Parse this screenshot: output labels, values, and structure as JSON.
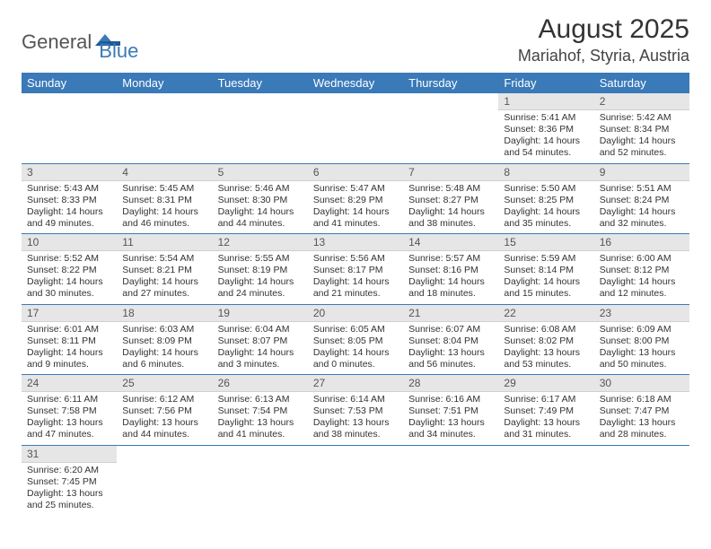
{
  "brand": {
    "general": "General",
    "blue": "Blue"
  },
  "title": "August 2025",
  "location": "Mariahof, Styria, Austria",
  "colors": {
    "header_bg": "#3a7ab8",
    "header_text": "#ffffff",
    "daynum_bg": "#e6e6e6",
    "rule": "#3a7ab8"
  },
  "weekdays": [
    "Sunday",
    "Monday",
    "Tuesday",
    "Wednesday",
    "Thursday",
    "Friday",
    "Saturday"
  ],
  "grid": [
    [
      null,
      null,
      null,
      null,
      null,
      {
        "n": "1",
        "sr": "5:41 AM",
        "ss": "8:36 PM",
        "dl": "14 hours and 54 minutes."
      },
      {
        "n": "2",
        "sr": "5:42 AM",
        "ss": "8:34 PM",
        "dl": "14 hours and 52 minutes."
      }
    ],
    [
      {
        "n": "3",
        "sr": "5:43 AM",
        "ss": "8:33 PM",
        "dl": "14 hours and 49 minutes."
      },
      {
        "n": "4",
        "sr": "5:45 AM",
        "ss": "8:31 PM",
        "dl": "14 hours and 46 minutes."
      },
      {
        "n": "5",
        "sr": "5:46 AM",
        "ss": "8:30 PM",
        "dl": "14 hours and 44 minutes."
      },
      {
        "n": "6",
        "sr": "5:47 AM",
        "ss": "8:29 PM",
        "dl": "14 hours and 41 minutes."
      },
      {
        "n": "7",
        "sr": "5:48 AM",
        "ss": "8:27 PM",
        "dl": "14 hours and 38 minutes."
      },
      {
        "n": "8",
        "sr": "5:50 AM",
        "ss": "8:25 PM",
        "dl": "14 hours and 35 minutes."
      },
      {
        "n": "9",
        "sr": "5:51 AM",
        "ss": "8:24 PM",
        "dl": "14 hours and 32 minutes."
      }
    ],
    [
      {
        "n": "10",
        "sr": "5:52 AM",
        "ss": "8:22 PM",
        "dl": "14 hours and 30 minutes."
      },
      {
        "n": "11",
        "sr": "5:54 AM",
        "ss": "8:21 PM",
        "dl": "14 hours and 27 minutes."
      },
      {
        "n": "12",
        "sr": "5:55 AM",
        "ss": "8:19 PM",
        "dl": "14 hours and 24 minutes."
      },
      {
        "n": "13",
        "sr": "5:56 AM",
        "ss": "8:17 PM",
        "dl": "14 hours and 21 minutes."
      },
      {
        "n": "14",
        "sr": "5:57 AM",
        "ss": "8:16 PM",
        "dl": "14 hours and 18 minutes."
      },
      {
        "n": "15",
        "sr": "5:59 AM",
        "ss": "8:14 PM",
        "dl": "14 hours and 15 minutes."
      },
      {
        "n": "16",
        "sr": "6:00 AM",
        "ss": "8:12 PM",
        "dl": "14 hours and 12 minutes."
      }
    ],
    [
      {
        "n": "17",
        "sr": "6:01 AM",
        "ss": "8:11 PM",
        "dl": "14 hours and 9 minutes."
      },
      {
        "n": "18",
        "sr": "6:03 AM",
        "ss": "8:09 PM",
        "dl": "14 hours and 6 minutes."
      },
      {
        "n": "19",
        "sr": "6:04 AM",
        "ss": "8:07 PM",
        "dl": "14 hours and 3 minutes."
      },
      {
        "n": "20",
        "sr": "6:05 AM",
        "ss": "8:05 PM",
        "dl": "14 hours and 0 minutes."
      },
      {
        "n": "21",
        "sr": "6:07 AM",
        "ss": "8:04 PM",
        "dl": "13 hours and 56 minutes."
      },
      {
        "n": "22",
        "sr": "6:08 AM",
        "ss": "8:02 PM",
        "dl": "13 hours and 53 minutes."
      },
      {
        "n": "23",
        "sr": "6:09 AM",
        "ss": "8:00 PM",
        "dl": "13 hours and 50 minutes."
      }
    ],
    [
      {
        "n": "24",
        "sr": "6:11 AM",
        "ss": "7:58 PM",
        "dl": "13 hours and 47 minutes."
      },
      {
        "n": "25",
        "sr": "6:12 AM",
        "ss": "7:56 PM",
        "dl": "13 hours and 44 minutes."
      },
      {
        "n": "26",
        "sr": "6:13 AM",
        "ss": "7:54 PM",
        "dl": "13 hours and 41 minutes."
      },
      {
        "n": "27",
        "sr": "6:14 AM",
        "ss": "7:53 PM",
        "dl": "13 hours and 38 minutes."
      },
      {
        "n": "28",
        "sr": "6:16 AM",
        "ss": "7:51 PM",
        "dl": "13 hours and 34 minutes."
      },
      {
        "n": "29",
        "sr": "6:17 AM",
        "ss": "7:49 PM",
        "dl": "13 hours and 31 minutes."
      },
      {
        "n": "30",
        "sr": "6:18 AM",
        "ss": "7:47 PM",
        "dl": "13 hours and 28 minutes."
      }
    ],
    [
      {
        "n": "31",
        "sr": "6:20 AM",
        "ss": "7:45 PM",
        "dl": "13 hours and 25 minutes."
      },
      null,
      null,
      null,
      null,
      null,
      null
    ]
  ],
  "labels": {
    "sunrise": "Sunrise: ",
    "sunset": "Sunset: ",
    "daylight": "Daylight: "
  }
}
